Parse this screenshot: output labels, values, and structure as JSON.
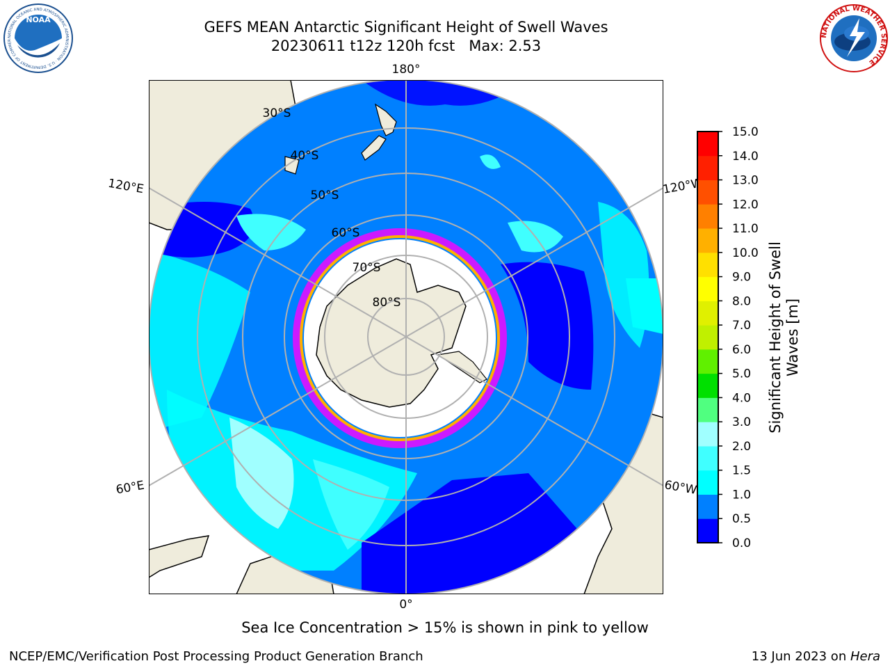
{
  "header": {
    "title": "GEFS MEAN Antarctic Significant Height of Swell Waves",
    "subtitle": "20230611 t12z 120h fcst   Max: 2.53"
  },
  "logos": {
    "left": {
      "name": "NOAA",
      "text": "NOAA",
      "ring_text": "NATIONAL OCEANIC AND ATMOSPHERIC ADMINISTRATION · U.S. DEPARTMENT OF COMMERCE"
    },
    "right": {
      "name": "National Weather Service",
      "ring_text": "NATIONAL WEATHER SERVICE"
    }
  },
  "map": {
    "projection": "south-polar-stereographic",
    "longitude_labels": [
      "180°",
      "120°E",
      "120°W",
      "60°E",
      "60°W",
      "0°"
    ],
    "latitude_labels": [
      "30°S",
      "40°S",
      "50°S",
      "60°S",
      "70°S",
      "80°S"
    ]
  },
  "colorbar": {
    "title_line1": "Significant Height of Swell",
    "title_line2": "Waves [m]",
    "ticks": [
      "0.0",
      "0.5",
      "1.0",
      "1.5",
      "2.0",
      "3.0",
      "4.0",
      "5.0",
      "6.0",
      "7.0",
      "8.0",
      "9.0",
      "10.0",
      "11.0",
      "12.0",
      "13.0",
      "14.0",
      "15.0"
    ],
    "colors": [
      "#0000ff",
      "#0080ff",
      "#00ffff",
      "#40ffff",
      "#a0ffff",
      "#50ff80",
      "#00e000",
      "#60f000",
      "#c0f000",
      "#e0f000",
      "#ffff00",
      "#ffe000",
      "#ffb000",
      "#ff8000",
      "#ff5000",
      "#ff2000",
      "#ff0000"
    ]
  },
  "caption": "Sea Ice Concentration > 15% is shown in pink to yellow",
  "footer": {
    "left": "NCEP/EMC/Verification Post Processing Product Generation Branch",
    "date": "13 Jun 2023 on ",
    "host": "Hera"
  }
}
